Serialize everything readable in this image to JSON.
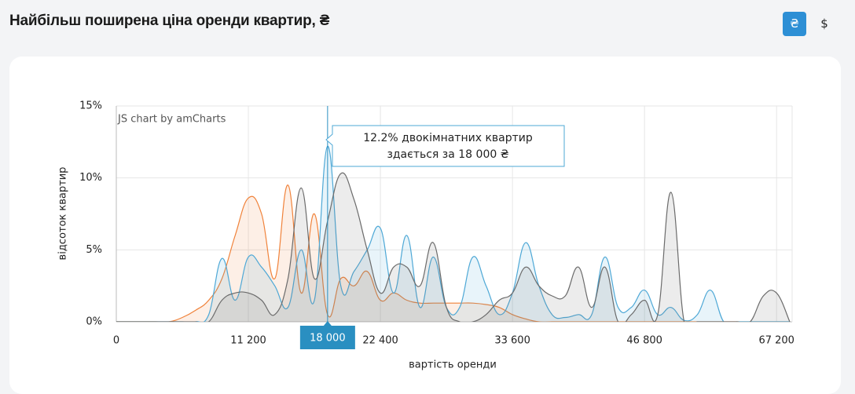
{
  "header": {
    "title": "Найбільш поширена ціна оренди квартир, ₴",
    "currency_buttons": [
      "₴",
      "$"
    ]
  },
  "chart_data": {
    "type": "area",
    "x_label": "вартість оренди",
    "y_label": "відсоток квартир",
    "watermark": "JS chart by amCharts",
    "categories": [
      "0",
      null,
      null,
      null,
      null,
      null,
      null,
      null,
      null,
      null,
      "11 200",
      null,
      null,
      null,
      null,
      null,
      "18 000",
      null,
      null,
      null,
      "22 400",
      null,
      null,
      null,
      null,
      null,
      null,
      null,
      null,
      null,
      "33 600",
      null,
      null,
      null,
      null,
      null,
      null,
      null,
      null,
      null,
      "46 800",
      null,
      null,
      null,
      null,
      null,
      null,
      null,
      null,
      null,
      "67 200",
      null
    ],
    "cursor_index": 16,
    "tooltip": {
      "lines": [
        "12.2% двокімнатних квартир",
        "здається за 18 000 ₴"
      ]
    },
    "ylim": [
      0,
      15
    ],
    "yticks": [
      {
        "value": 0,
        "label": "0%"
      },
      {
        "value": 5,
        "label": "5%"
      },
      {
        "value": 10,
        "label": "10%"
      },
      {
        "value": 15,
        "label": "15%"
      }
    ],
    "grid": true,
    "series": [
      {
        "color": "#f0823a",
        "values": [
          0,
          0,
          0,
          0,
          0,
          0.3,
          0.8,
          1.5,
          3.0,
          6.0,
          8.6,
          7.5,
          3.0,
          9.5,
          2.0,
          7.5,
          0.5,
          3.0,
          2.5,
          3.5,
          1.5,
          2.0,
          1.5,
          1.3,
          1.3,
          1.3,
          1.3,
          1.3,
          1.2,
          1.0,
          0.5,
          0.2,
          0,
          0,
          0,
          0,
          0,
          0,
          0,
          0,
          0,
          0,
          0,
          0,
          0,
          0,
          0,
          0,
          0,
          0,
          0,
          0
        ]
      },
      {
        "color": "#4ea8d6",
        "values": [
          0,
          0,
          0,
          0,
          0,
          0,
          0,
          0.5,
          4.4,
          1.5,
          4.5,
          3.8,
          2.5,
          1.0,
          5.0,
          1.5,
          12.2,
          2.5,
          3.5,
          5.0,
          6.5,
          2.0,
          6.0,
          1.0,
          4.5,
          1.0,
          1.0,
          4.5,
          2.5,
          0.5,
          2.0,
          5.5,
          2.5,
          0.5,
          0.3,
          0.5,
          0.5,
          4.5,
          1.0,
          1.0,
          2.2,
          0.5,
          1.0,
          0.1,
          0.5,
          2.2,
          0,
          0,
          0,
          0,
          0,
          0
        ]
      },
      {
        "color": "#6b6b6b",
        "values": [
          0,
          0,
          0,
          0,
          0,
          0,
          0,
          0,
          1.5,
          2.0,
          2.0,
          1.5,
          0.5,
          3.0,
          9.3,
          3.0,
          7.0,
          10.3,
          8.5,
          5.0,
          2.0,
          3.8,
          3.8,
          2.5,
          5.5,
          1.0,
          0,
          0,
          0.5,
          1.5,
          2.0,
          3.8,
          2.5,
          1.8,
          1.8,
          3.8,
          1.0,
          3.8,
          0,
          0.5,
          1.5,
          0.5,
          9.0,
          0,
          0,
          0,
          0,
          0,
          0,
          1.8,
          2.0,
          0
        ]
      }
    ]
  }
}
